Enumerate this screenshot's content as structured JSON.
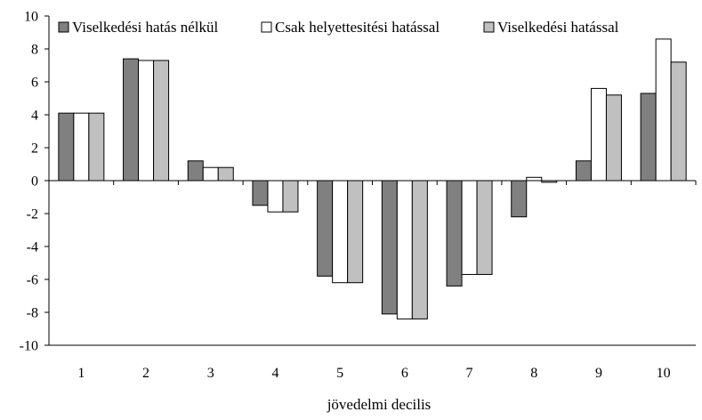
{
  "chart_data": {
    "type": "bar",
    "title": "",
    "xlabel": "jövedelmi decilis",
    "ylabel": "",
    "categories": [
      "1",
      "2",
      "3",
      "4",
      "5",
      "6",
      "7",
      "8",
      "9",
      "10"
    ],
    "ylim": [
      -10,
      10
    ],
    "yticks": [
      "10",
      "8",
      "6",
      "4",
      "2",
      "0",
      "-2",
      "-4",
      "-6",
      "-8",
      "-10"
    ],
    "ytick_values": [
      10,
      8,
      6,
      4,
      2,
      0,
      -2,
      -4,
      -6,
      -8,
      -10
    ],
    "grid": false,
    "legend_position": "top",
    "series": [
      {
        "name": "Viselkedési hatás nélkül",
        "color": "#808080",
        "values": [
          4.1,
          7.4,
          1.2,
          -1.5,
          -5.8,
          -8.1,
          -6.4,
          -2.2,
          1.2,
          5.3
        ]
      },
      {
        "name": "Csak helyettesitési hatással",
        "color": "#ffffff",
        "values": [
          4.1,
          7.3,
          0.8,
          -1.9,
          -6.2,
          -8.4,
          -5.7,
          0.2,
          5.6,
          8.6
        ]
      },
      {
        "name": "Viselkedési hatással",
        "color": "#c0c0c0",
        "values": [
          4.1,
          7.3,
          0.8,
          -1.9,
          -6.2,
          -8.4,
          -5.7,
          -0.1,
          5.2,
          7.2
        ]
      }
    ]
  }
}
